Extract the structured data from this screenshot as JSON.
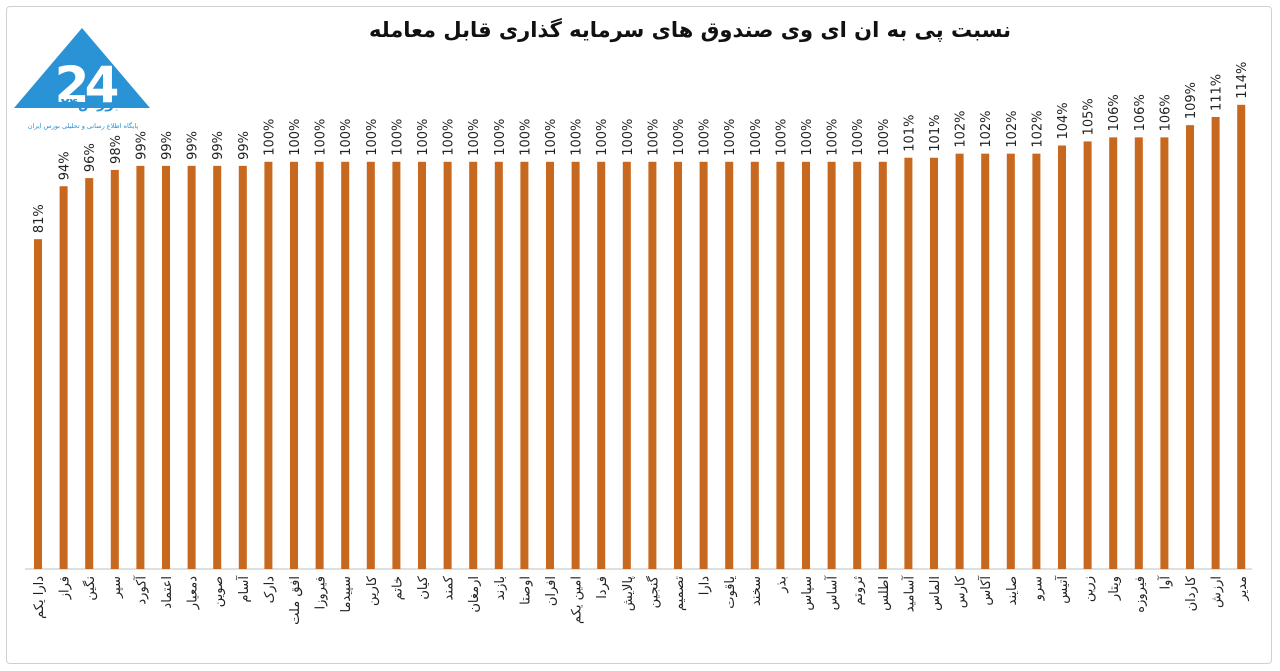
{
  "branding": {
    "name": "بورس۲۴",
    "tagline": "پایگاه اطلاع رسانی و تحلیلی بورس ایران"
  },
  "chart_data": {
    "type": "bar",
    "title": "نسبت پی به ان ای وی صندوق های سرمایه گذاری قابل معامله",
    "xlabel": "",
    "ylabel": "",
    "ylim": [
      0,
      125
    ],
    "grid": false,
    "bar_color": "#c8671e",
    "unit": "%",
    "categories": [
      "دارا یکم",
      "فراز",
      "نگین",
      "سپر",
      "آکورد",
      "اعتماد",
      "دمعیار",
      "صوین",
      "آسام",
      "دارک",
      "افق ملت",
      "فیروزا",
      "سپیدما",
      "کارین",
      "خاتم",
      "کیان",
      "کمند",
      "ارمغان",
      "بازند",
      "اوصتا",
      "افران",
      "امین یکم",
      "فردا",
      "پالایش",
      "گنجین",
      "تصمیم",
      "دارا",
      "یاقوت",
      "سخند",
      "بذر",
      "سپاس",
      "آساس",
      "ثروتم",
      "اطلس",
      "آسامید",
      "الماس",
      "کارس",
      "آکاس",
      "صایند",
      "سرو",
      "آتیس",
      "زرین",
      "ویتار",
      "فیروزه",
      "آوا",
      "کاردان",
      "ارزش",
      "مدیر"
    ],
    "values": [
      81,
      94,
      96,
      98,
      99,
      99,
      99,
      99,
      99,
      100,
      100,
      100,
      100,
      100,
      100,
      100,
      100,
      100,
      100,
      100,
      100,
      100,
      100,
      100,
      100,
      100,
      100,
      100,
      100,
      100,
      100,
      100,
      100,
      100,
      101,
      101,
      102,
      102,
      102,
      102,
      104,
      105,
      106,
      106,
      106,
      109,
      111,
      114
    ],
    "labels": [
      "81%",
      "94%",
      "96%",
      "98%",
      "99%",
      "99%",
      "99%",
      "99%",
      "99%",
      "100%",
      "100%",
      "100%",
      "100%",
      "100%",
      "100%",
      "100%",
      "100%",
      "100%",
      "100%",
      "100%",
      "100%",
      "100%",
      "100%",
      "100%",
      "100%",
      "100%",
      "100%",
      "100%",
      "100%",
      "100%",
      "100%",
      "100%",
      "100%",
      "100%",
      "101%",
      "101%",
      "102%",
      "102%",
      "102%",
      "102%",
      "104%",
      "105%",
      "106%",
      "106%",
      "106%",
      "109%",
      "111%",
      "114%"
    ]
  }
}
